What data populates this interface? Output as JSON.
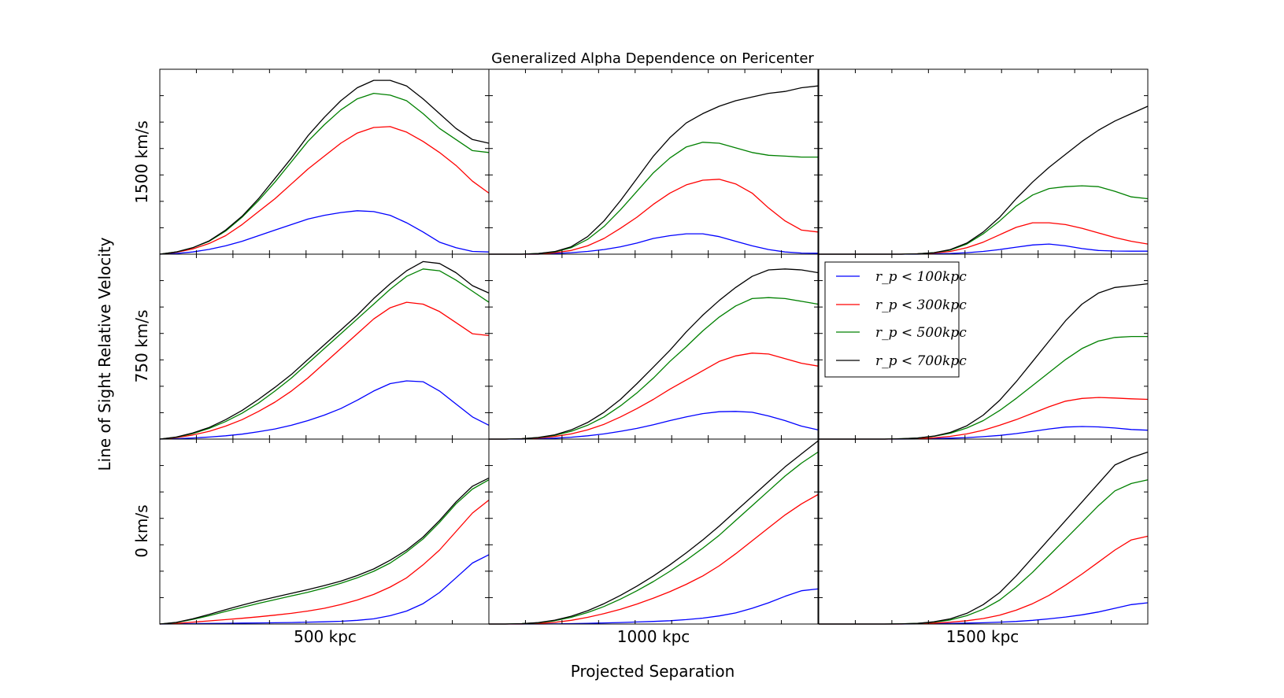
{
  "chart_data": {
    "type": "line",
    "title": "Generalized Alpha Dependence on Pericenter",
    "xlabel": "Projected Separation",
    "ylabel": "Line of Sight Relative Velocity",
    "column_labels": [
      "500 kpc",
      "1000 kpc",
      "1500 kpc"
    ],
    "row_labels": [
      "1500 km/s",
      "750 km/s",
      "0 km/s"
    ],
    "grid": false,
    "legend_position": "top-left of middle-right panel",
    "series_names": [
      "r_p < 100kpc",
      "r_p < 300kpc",
      "r_p < 500kpc",
      "r_p < 700kpc"
    ],
    "legend_labels": [
      "r_p < 100kpc",
      "r_p < 300kpc",
      "r_p < 500kpc",
      "r_p < 700kpc"
    ],
    "colors": [
      "#0000ff",
      "#ff0000",
      "#008000",
      "#000000"
    ],
    "x": [
      0,
      0.05,
      0.1,
      0.15,
      0.2,
      0.25,
      0.3,
      0.35,
      0.4,
      0.45,
      0.5,
      0.55,
      0.6,
      0.65,
      0.7,
      0.75,
      0.8,
      0.85,
      0.9,
      0.95,
      1.0
    ],
    "xlim": [
      0,
      1
    ],
    "ylim": [
      0,
      1
    ],
    "panels": [
      {
        "row": 0,
        "col": 0,
        "series": [
          [
            0,
            0.004,
            0.012,
            0.026,
            0.045,
            0.07,
            0.1,
            0.13,
            0.16,
            0.19,
            0.21,
            0.225,
            0.235,
            0.23,
            0.21,
            0.17,
            0.12,
            0.065,
            0.035,
            0.015,
            0.012
          ],
          [
            0,
            0.01,
            0.028,
            0.058,
            0.1,
            0.16,
            0.23,
            0.3,
            0.38,
            0.46,
            0.53,
            0.6,
            0.655,
            0.685,
            0.69,
            0.66,
            0.61,
            0.55,
            0.48,
            0.395,
            0.33
          ],
          [
            0,
            0.012,
            0.035,
            0.07,
            0.125,
            0.2,
            0.29,
            0.39,
            0.5,
            0.61,
            0.7,
            0.78,
            0.84,
            0.87,
            0.86,
            0.83,
            0.76,
            0.68,
            0.62,
            0.56,
            0.55
          ],
          [
            0,
            0.012,
            0.035,
            0.072,
            0.13,
            0.205,
            0.3,
            0.41,
            0.52,
            0.64,
            0.74,
            0.83,
            0.9,
            0.94,
            0.94,
            0.91,
            0.84,
            0.76,
            0.68,
            0.62,
            0.6
          ]
        ]
      },
      {
        "row": 0,
        "col": 1,
        "series": [
          [
            0,
            0,
            0,
            0,
            0.004,
            0.008,
            0.015,
            0.025,
            0.04,
            0.06,
            0.085,
            0.1,
            0.11,
            0.11,
            0.095,
            0.07,
            0.045,
            0.025,
            0.012,
            0.006,
            0.005
          ],
          [
            0,
            0,
            0,
            0,
            0.008,
            0.02,
            0.045,
            0.085,
            0.14,
            0.2,
            0.27,
            0.33,
            0.375,
            0.4,
            0.405,
            0.38,
            0.33,
            0.25,
            0.18,
            0.13,
            0.12
          ],
          [
            0,
            0,
            0,
            0.004,
            0.012,
            0.035,
            0.08,
            0.15,
            0.24,
            0.34,
            0.44,
            0.52,
            0.58,
            0.605,
            0.6,
            0.575,
            0.55,
            0.535,
            0.53,
            0.525,
            0.525
          ],
          [
            0,
            0,
            0,
            0.004,
            0.014,
            0.04,
            0.095,
            0.18,
            0.29,
            0.41,
            0.53,
            0.63,
            0.71,
            0.76,
            0.8,
            0.83,
            0.85,
            0.87,
            0.88,
            0.9,
            0.91
          ]
        ]
      },
      {
        "row": 0,
        "col": 2,
        "series": [
          [
            0,
            0,
            0,
            0,
            0,
            0,
            0,
            0.002,
            0.004,
            0.008,
            0.015,
            0.025,
            0.038,
            0.05,
            0.055,
            0.045,
            0.03,
            0.02,
            0.017,
            0.016,
            0.016
          ],
          [
            0,
            0,
            0,
            0,
            0,
            0,
            0.002,
            0.006,
            0.015,
            0.035,
            0.065,
            0.105,
            0.145,
            0.17,
            0.17,
            0.16,
            0.14,
            0.115,
            0.09,
            0.07,
            0.055
          ],
          [
            0,
            0,
            0,
            0,
            0,
            0,
            0.002,
            0.008,
            0.022,
            0.055,
            0.11,
            0.18,
            0.26,
            0.32,
            0.355,
            0.365,
            0.37,
            0.365,
            0.34,
            0.31,
            0.3
          ],
          [
            0,
            0,
            0,
            0,
            0,
            0,
            0.002,
            0.008,
            0.025,
            0.06,
            0.12,
            0.2,
            0.3,
            0.39,
            0.47,
            0.54,
            0.61,
            0.67,
            0.72,
            0.76,
            0.8
          ]
        ]
      },
      {
        "row": 1,
        "col": 0,
        "series": [
          [
            0,
            0.002,
            0.006,
            0.011,
            0.018,
            0.027,
            0.04,
            0.055,
            0.075,
            0.1,
            0.13,
            0.165,
            0.21,
            0.26,
            0.3,
            0.315,
            0.31,
            0.26,
            0.19,
            0.12,
            0.075
          ],
          [
            0,
            0.008,
            0.022,
            0.042,
            0.07,
            0.105,
            0.15,
            0.2,
            0.26,
            0.33,
            0.41,
            0.49,
            0.57,
            0.65,
            0.71,
            0.74,
            0.73,
            0.69,
            0.63,
            0.57,
            0.56
          ],
          [
            0,
            0.01,
            0.03,
            0.058,
            0.095,
            0.14,
            0.195,
            0.26,
            0.33,
            0.41,
            0.49,
            0.57,
            0.65,
            0.73,
            0.81,
            0.88,
            0.92,
            0.91,
            0.86,
            0.8,
            0.74
          ],
          [
            0,
            0.011,
            0.033,
            0.063,
            0.105,
            0.155,
            0.215,
            0.28,
            0.35,
            0.43,
            0.51,
            0.59,
            0.67,
            0.76,
            0.84,
            0.91,
            0.96,
            0.95,
            0.9,
            0.83,
            0.79
          ]
        ]
      },
      {
        "row": 1,
        "col": 1,
        "series": [
          [
            0,
            0,
            0,
            0.002,
            0.005,
            0.01,
            0.018,
            0.028,
            0.042,
            0.058,
            0.078,
            0.1,
            0.12,
            0.138,
            0.148,
            0.15,
            0.145,
            0.125,
            0.1,
            0.07,
            0.05
          ],
          [
            0,
            0,
            0.002,
            0.006,
            0.014,
            0.028,
            0.05,
            0.08,
            0.12,
            0.165,
            0.215,
            0.27,
            0.32,
            0.37,
            0.42,
            0.45,
            0.465,
            0.46,
            0.435,
            0.41,
            0.395
          ],
          [
            0,
            0,
            0.002,
            0.008,
            0.02,
            0.042,
            0.075,
            0.12,
            0.18,
            0.25,
            0.33,
            0.42,
            0.5,
            0.585,
            0.66,
            0.72,
            0.76,
            0.765,
            0.76,
            0.745,
            0.73
          ],
          [
            0,
            0,
            0.002,
            0.009,
            0.023,
            0.05,
            0.09,
            0.145,
            0.215,
            0.3,
            0.39,
            0.48,
            0.58,
            0.67,
            0.75,
            0.82,
            0.88,
            0.915,
            0.92,
            0.915,
            0.9
          ]
        ]
      },
      {
        "row": 1,
        "col": 2,
        "series": [
          [
            0,
            0,
            0,
            0,
            0,
            0,
            0.001,
            0.003,
            0.005,
            0.008,
            0.013,
            0.02,
            0.03,
            0.042,
            0.055,
            0.065,
            0.068,
            0.066,
            0.06,
            0.052,
            0.048
          ],
          [
            0,
            0,
            0,
            0,
            0,
            0.001,
            0.003,
            0.007,
            0.015,
            0.028,
            0.048,
            0.075,
            0.105,
            0.14,
            0.175,
            0.205,
            0.22,
            0.225,
            0.222,
            0.218,
            0.215
          ],
          [
            0,
            0,
            0,
            0,
            0,
            0.002,
            0.006,
            0.015,
            0.032,
            0.06,
            0.1,
            0.155,
            0.22,
            0.29,
            0.36,
            0.43,
            0.49,
            0.53,
            0.55,
            0.555,
            0.555
          ],
          [
            0,
            0,
            0,
            0,
            0,
            0.002,
            0.006,
            0.016,
            0.036,
            0.072,
            0.13,
            0.21,
            0.31,
            0.42,
            0.53,
            0.64,
            0.73,
            0.79,
            0.82,
            0.83,
            0.84
          ]
        ]
      },
      {
        "row": 2,
        "col": 0,
        "series": [
          [
            0,
            0.001,
            0.002,
            0.003,
            0.004,
            0.005,
            0.006,
            0.007,
            0.008,
            0.01,
            0.012,
            0.015,
            0.02,
            0.028,
            0.045,
            0.07,
            0.11,
            0.17,
            0.25,
            0.33,
            0.375
          ],
          [
            0,
            0.004,
            0.01,
            0.017,
            0.024,
            0.031,
            0.039,
            0.048,
            0.058,
            0.07,
            0.085,
            0.105,
            0.13,
            0.16,
            0.2,
            0.25,
            0.32,
            0.4,
            0.5,
            0.6,
            0.67
          ],
          [
            0,
            0.008,
            0.025,
            0.045,
            0.068,
            0.09,
            0.112,
            0.132,
            0.152,
            0.172,
            0.195,
            0.22,
            0.25,
            0.285,
            0.33,
            0.39,
            0.46,
            0.55,
            0.65,
            0.73,
            0.78
          ],
          [
            0,
            0.009,
            0.028,
            0.052,
            0.078,
            0.102,
            0.125,
            0.146,
            0.166,
            0.186,
            0.208,
            0.232,
            0.262,
            0.298,
            0.345,
            0.4,
            0.47,
            0.56,
            0.66,
            0.745,
            0.79
          ]
        ]
      },
      {
        "row": 2,
        "col": 1,
        "series": [
          [
            0,
            0,
            0,
            0,
            0.001,
            0.002,
            0.004,
            0.006,
            0.008,
            0.011,
            0.014,
            0.018,
            0.024,
            0.032,
            0.044,
            0.06,
            0.085,
            0.115,
            0.15,
            0.18,
            0.19
          ],
          [
            0,
            0,
            0,
            0.003,
            0.009,
            0.02,
            0.036,
            0.056,
            0.08,
            0.108,
            0.14,
            0.175,
            0.215,
            0.26,
            0.315,
            0.38,
            0.45,
            0.52,
            0.59,
            0.65,
            0.7
          ],
          [
            0,
            0,
            0.002,
            0.007,
            0.018,
            0.036,
            0.062,
            0.095,
            0.135,
            0.18,
            0.23,
            0.285,
            0.345,
            0.41,
            0.48,
            0.56,
            0.64,
            0.72,
            0.8,
            0.87,
            0.93
          ],
          [
            0,
            0,
            0.002,
            0.008,
            0.021,
            0.042,
            0.072,
            0.11,
            0.155,
            0.205,
            0.26,
            0.32,
            0.385,
            0.455,
            0.53,
            0.61,
            0.69,
            0.77,
            0.85,
            0.92,
            0.99
          ]
        ]
      },
      {
        "row": 2,
        "col": 2,
        "series": [
          [
            0,
            0,
            0,
            0,
            0,
            0,
            0.001,
            0.002,
            0.003,
            0.005,
            0.007,
            0.01,
            0.014,
            0.02,
            0.028,
            0.038,
            0.05,
            0.065,
            0.085,
            0.105,
            0.115
          ],
          [
            0,
            0,
            0,
            0,
            0,
            0,
            0.002,
            0.005,
            0.01,
            0.018,
            0.03,
            0.048,
            0.075,
            0.11,
            0.155,
            0.21,
            0.27,
            0.335,
            0.4,
            0.455,
            0.475
          ],
          [
            0,
            0,
            0,
            0,
            0,
            0.001,
            0.004,
            0.01,
            0.022,
            0.045,
            0.08,
            0.13,
            0.2,
            0.28,
            0.37,
            0.46,
            0.55,
            0.64,
            0.72,
            0.76,
            0.78
          ],
          [
            0,
            0,
            0,
            0,
            0,
            0.001,
            0.004,
            0.012,
            0.028,
            0.058,
            0.105,
            0.17,
            0.26,
            0.36,
            0.46,
            0.56,
            0.66,
            0.76,
            0.86,
            0.9,
            0.93
          ]
        ]
      }
    ]
  }
}
